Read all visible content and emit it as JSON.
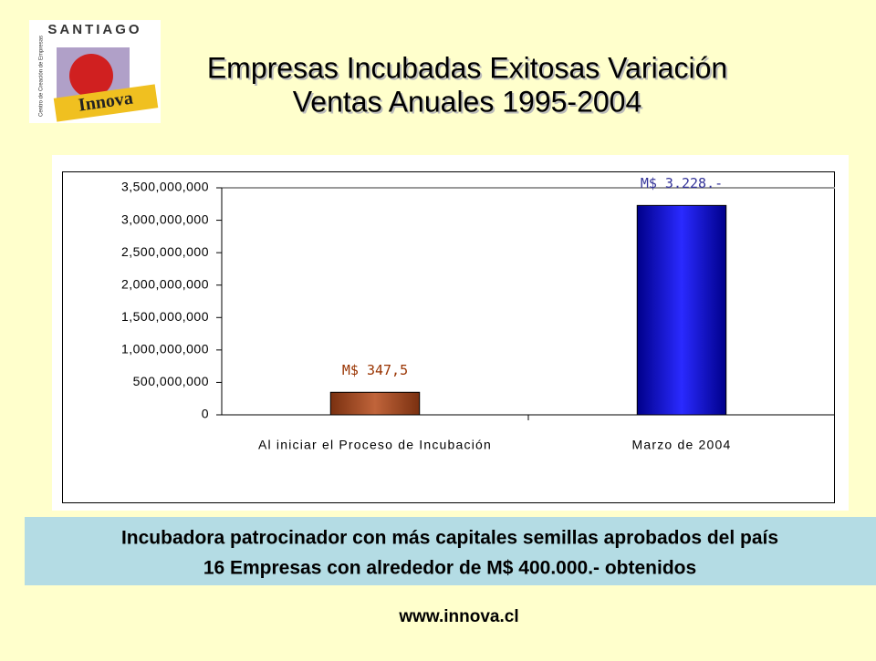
{
  "logo": {
    "top": "SANTIAGO",
    "side": "Centro de Creación de Empresas",
    "bottom": "Innova"
  },
  "chart_data": {
    "type": "bar",
    "title": [
      "Empresas Incubadas  Exitosas Variación",
      "Ventas Anuales 1995-2004"
    ],
    "categories": [
      "Al iniciar el Proceso de Incubación",
      "Marzo de 2004"
    ],
    "values": [
      347500000,
      3228000000
    ],
    "value_labels": [
      "M$ 347,5",
      "M$ 3.228.-"
    ],
    "colors": [
      "#a0461e",
      "#1010c8"
    ],
    "label_colors": [
      "#993300",
      "#333399"
    ],
    "ylim": [
      0,
      3500000000
    ],
    "yticks": [
      0,
      {
        "value": 500000000,
        "label": "500,000,000"
      },
      {
        "value": 1000000000,
        "label": "1,000,000,000"
      },
      {
        "value": 1500000000,
        "label": "1,500,000,000"
      },
      {
        "value": 2000000000,
        "label": "2,000,000,000"
      },
      {
        "value": 2500000000,
        "label": "2,500,000,000"
      },
      {
        "value": 3000000000,
        "label": "3,000,000,000"
      },
      {
        "value": 3500000000,
        "label": "3,500,000,000"
      }
    ],
    "grid": false
  },
  "note": [
    "Incubadora patrocinador con más capitales semillas aprobados del país",
    "16 Empresas con alrededor de M$ 400.000.- obtenidos"
  ],
  "url": "www.innova.cl"
}
